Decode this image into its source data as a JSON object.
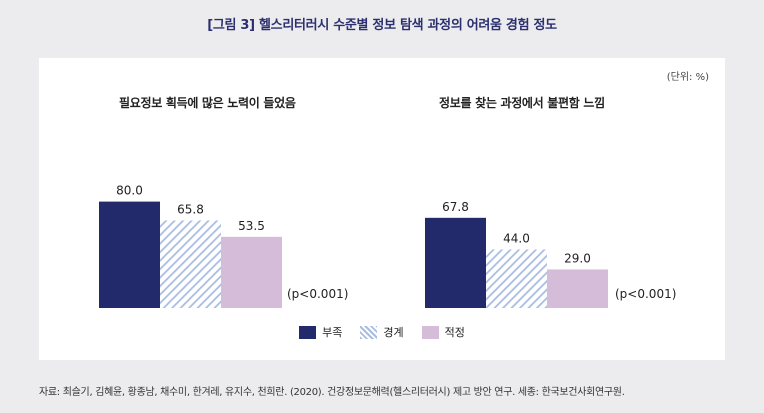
{
  "figure_title": "[그림 3] 헬스리터러시 수준별 정보 탐색 과정의 어려움 경험 정도",
  "unit_label": "(단위: %)",
  "source": "자료: 최슬기, 김혜윤, 황종남, 채수미, 한겨레, 유지수, 천희란. (2020). 건강정보문해력(헬스리터러시) 제고 방안 연구. 세종: 한국보건사회연구원.",
  "colors": {
    "부족": "#232a6b",
    "경계": "#a9bde3",
    "적정": "#d5bcd9"
  },
  "chart_data": [
    {
      "type": "bar",
      "title": "필요정보 획득에 많은 노력이 들었음",
      "categories": [
        "부족",
        "경계",
        "적정"
      ],
      "values": [
        80.0,
        65.8,
        53.5
      ],
      "value_labels": [
        "80.0",
        "65.8",
        "53.5"
      ],
      "annotation": "(p<0.001)",
      "ylim": [
        0,
        100
      ]
    },
    {
      "type": "bar",
      "title": "정보를 찾는 과정에서 불편함 느낌",
      "categories": [
        "부족",
        "경계",
        "적정"
      ],
      "values": [
        67.8,
        44.0,
        29.0
      ],
      "value_labels": [
        "67.8",
        "44.0",
        "29.0"
      ],
      "annotation": "(p<0.001)",
      "ylim": [
        0,
        100
      ]
    }
  ],
  "legend": [
    {
      "label": "부족",
      "style": "solid"
    },
    {
      "label": "경계",
      "style": "hatched"
    },
    {
      "label": "적정",
      "style": "solid"
    }
  ]
}
